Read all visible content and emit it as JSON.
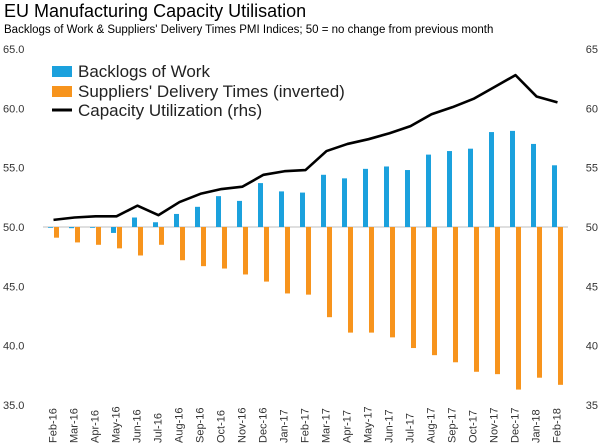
{
  "title": "EU Manufacturing Capacity Utilisation",
  "subtitle": "Backlogs of Work & Suppliers' Delivery Times PMI Indices; 50 = no change from previous month",
  "chart_data": {
    "type": "bar",
    "categories": [
      "Feb-16",
      "Mar-16",
      "Apr-16",
      "May-16",
      "Jun-16",
      "Jul-16",
      "Aug-16",
      "Sep-16",
      "Oct-16",
      "Nov-16",
      "Dec-16",
      "Jan-17",
      "Feb-17",
      "Mar-17",
      "Apr-17",
      "May-17",
      "Jun-17",
      "Jul-17",
      "Aug-17",
      "Sep-17",
      "Oct-17",
      "Nov-17",
      "Dec-17",
      "Jan-18",
      "Feb-18"
    ],
    "series": [
      {
        "name": "Backlogs of Work",
        "type": "bar",
        "axis": "left",
        "color": "#1ba1dd",
        "values": [
          50.0,
          49.9,
          50.0,
          49.5,
          50.8,
          50.4,
          51.1,
          51.7,
          52.6,
          52.2,
          53.7,
          53.0,
          52.9,
          54.4,
          54.1,
          54.9,
          55.1,
          54.8,
          56.1,
          56.4,
          56.6,
          58.0,
          58.1,
          57.0,
          55.2
        ]
      },
      {
        "name": "Suppliers' Delivery Times (inverted)",
        "type": "bar",
        "axis": "left",
        "color": "#f7941d",
        "values": [
          49.1,
          48.7,
          48.5,
          48.2,
          47.6,
          48.5,
          47.2,
          46.7,
          46.5,
          46.0,
          45.4,
          44.4,
          44.3,
          42.4,
          41.1,
          41.1,
          40.7,
          39.8,
          39.2,
          38.6,
          37.8,
          37.6,
          36.3,
          37.3,
          36.7
        ]
      },
      {
        "name": "Capacity Utilization (rhs)",
        "type": "line",
        "axis": "right",
        "color": "#000000",
        "values": [
          50.6,
          50.8,
          50.9,
          50.9,
          51.8,
          51.0,
          52.1,
          52.8,
          53.2,
          53.4,
          54.4,
          54.7,
          54.8,
          56.4,
          57.0,
          57.4,
          57.9,
          58.5,
          59.5,
          60.1,
          60.8,
          61.8,
          62.8,
          61.0,
          60.5
        ]
      }
    ],
    "y_left": {
      "min": 35.0,
      "max": 65.0,
      "ticks": [
        "35.0",
        "40.0",
        "45.0",
        "50.0",
        "55.0",
        "60.0",
        "65.0"
      ]
    },
    "y_right": {
      "min": 35,
      "max": 65,
      "ticks": [
        "35",
        "40",
        "45",
        "50",
        "55",
        "60",
        "65"
      ]
    },
    "baseline": 50,
    "grid": false,
    "legend_position": "top-left"
  }
}
